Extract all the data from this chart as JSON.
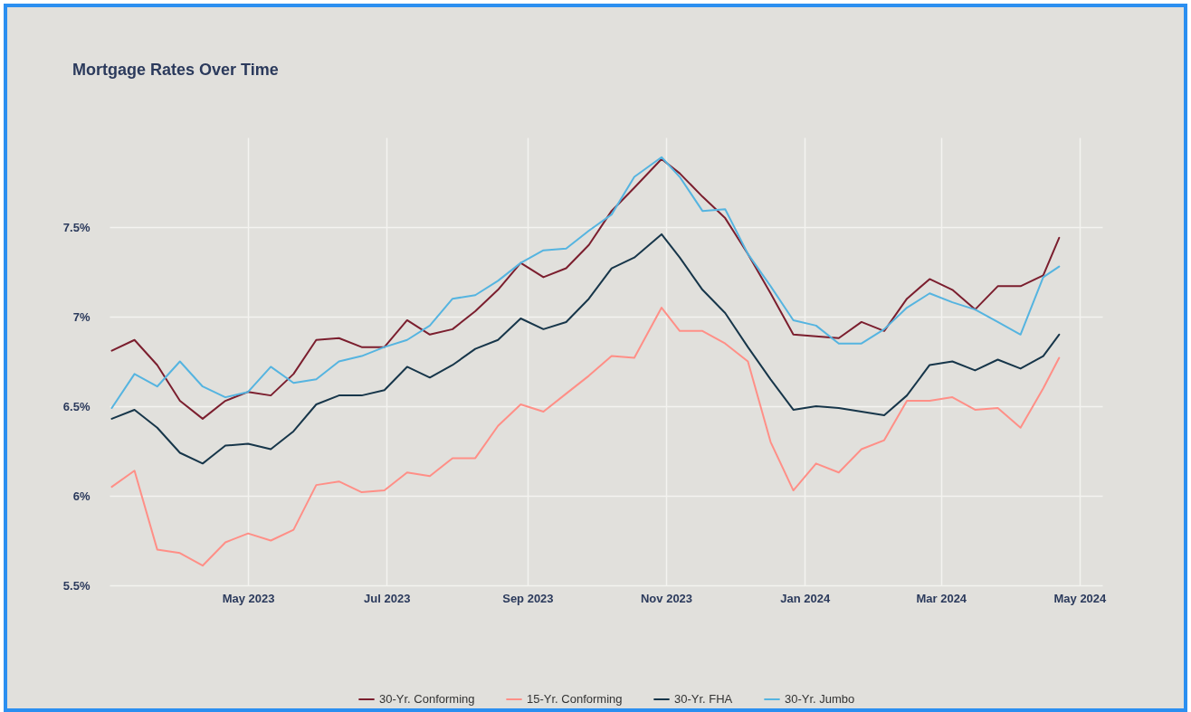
{
  "chart_data": {
    "type": "line",
    "title": "Mortgage Rates Over Time",
    "x": [
      "2023-03-02",
      "2023-03-12",
      "2023-03-22",
      "2023-04-01",
      "2023-04-11",
      "2023-04-21",
      "2023-05-01",
      "2023-05-11",
      "2023-05-21",
      "2023-05-31",
      "2023-06-10",
      "2023-06-20",
      "2023-06-30",
      "2023-07-10",
      "2023-07-20",
      "2023-07-30",
      "2023-08-09",
      "2023-08-19",
      "2023-08-29",
      "2023-09-08",
      "2023-09-18",
      "2023-09-28",
      "2023-10-08",
      "2023-10-18",
      "2023-10-30",
      "2023-11-07",
      "2023-11-17",
      "2023-11-27",
      "2023-12-07",
      "2023-12-17",
      "2023-12-27",
      "2024-01-06",
      "2024-01-16",
      "2024-01-26",
      "2024-02-05",
      "2024-02-15",
      "2024-02-25",
      "2024-03-06",
      "2024-03-16",
      "2024-03-26",
      "2024-04-05",
      "2024-04-15",
      "2024-04-22"
    ],
    "series": [
      {
        "name": "30-Yr. Conforming",
        "color": "#7b1e2e",
        "values": [
          6.81,
          6.87,
          6.73,
          6.53,
          6.43,
          6.53,
          6.58,
          6.56,
          6.68,
          6.87,
          6.88,
          6.83,
          6.83,
          6.98,
          6.9,
          6.93,
          7.03,
          7.15,
          7.3,
          7.22,
          7.27,
          7.4,
          7.59,
          7.72,
          7.88,
          7.8,
          7.67,
          7.55,
          7.35,
          7.13,
          6.9,
          6.89,
          6.88,
          6.97,
          6.92,
          7.1,
          7.21,
          7.15,
          7.04,
          7.17,
          7.17,
          7.23,
          7.44
        ]
      },
      {
        "name": "15-Yr. Conforming",
        "color": "#ff8f87",
        "values": [
          6.05,
          6.14,
          5.7,
          5.68,
          5.61,
          5.74,
          5.79,
          5.75,
          5.81,
          6.06,
          6.08,
          6.02,
          6.03,
          6.13,
          6.11,
          6.21,
          6.21,
          6.39,
          6.51,
          6.47,
          6.57,
          6.67,
          6.78,
          6.77,
          7.05,
          6.92,
          6.92,
          6.85,
          6.75,
          6.3,
          6.03,
          6.18,
          6.13,
          6.26,
          6.31,
          6.53,
          6.53,
          6.55,
          6.48,
          6.49,
          6.38,
          6.6,
          6.77
        ]
      },
      {
        "name": "30-Yr. FHA",
        "color": "#17364a",
        "values": [
          6.43,
          6.48,
          6.38,
          6.24,
          6.18,
          6.28,
          6.29,
          6.26,
          6.36,
          6.51,
          6.56,
          6.56,
          6.59,
          6.72,
          6.66,
          6.73,
          6.82,
          6.87,
          6.99,
          6.93,
          6.97,
          7.1,
          7.27,
          7.33,
          7.46,
          7.33,
          7.15,
          7.02,
          6.83,
          6.65,
          6.48,
          6.5,
          6.49,
          6.47,
          6.45,
          6.56,
          6.73,
          6.75,
          6.7,
          6.76,
          6.71,
          6.78,
          6.9
        ]
      },
      {
        "name": "30-Yr. Jumbo",
        "color": "#55b4e0",
        "values": [
          6.49,
          6.68,
          6.61,
          6.75,
          6.61,
          6.55,
          6.58,
          6.72,
          6.63,
          6.65,
          6.75,
          6.78,
          6.83,
          6.87,
          6.95,
          7.1,
          7.12,
          7.2,
          7.3,
          7.37,
          7.38,
          7.48,
          7.57,
          7.78,
          7.89,
          7.78,
          7.59,
          7.6,
          7.35,
          7.17,
          6.98,
          6.95,
          6.85,
          6.85,
          6.93,
          7.05,
          7.13,
          7.08,
          7.04,
          6.97,
          6.9,
          7.22,
          7.28
        ]
      }
    ],
    "xlim": [
      "2023-03-01",
      "2024-05-11"
    ],
    "xticks": [
      {
        "value": "2023-05-01",
        "label": "May 2023"
      },
      {
        "value": "2023-07-01",
        "label": "Jul 2023"
      },
      {
        "value": "2023-09-01",
        "label": "Sep 2023"
      },
      {
        "value": "2023-11-01",
        "label": "Nov 2023"
      },
      {
        "value": "2024-01-01",
        "label": "Jan 2024"
      },
      {
        "value": "2024-03-01",
        "label": "Mar 2024"
      },
      {
        "value": "2024-05-01",
        "label": "May 2024"
      }
    ],
    "ylim": [
      5.5,
      8
    ],
    "yticks": [
      {
        "value": 5.5,
        "label": "5.5%"
      },
      {
        "value": 6,
        "label": "6%"
      },
      {
        "value": 6.5,
        "label": "6.5%"
      },
      {
        "value": 7,
        "label": "7%"
      },
      {
        "value": 7.5,
        "label": "7.5%"
      }
    ],
    "grid": true,
    "legend": "bottom",
    "line_style": "solid",
    "marker": "none"
  }
}
